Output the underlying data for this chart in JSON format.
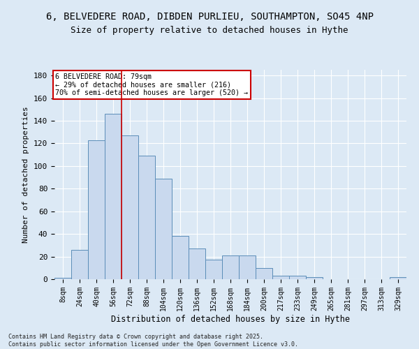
{
  "title_line1": "6, BELVEDERE ROAD, DIBDEN PURLIEU, SOUTHAMPTON, SO45 4NP",
  "title_line2": "Size of property relative to detached houses in Hythe",
  "xlabel": "Distribution of detached houses by size in Hythe",
  "ylabel": "Number of detached properties",
  "categories": [
    "8sqm",
    "24sqm",
    "40sqm",
    "56sqm",
    "72sqm",
    "88sqm",
    "104sqm",
    "120sqm",
    "136sqm",
    "152sqm",
    "168sqm",
    "184sqm",
    "200sqm",
    "217sqm",
    "233sqm",
    "249sqm",
    "265sqm",
    "281sqm",
    "297sqm",
    "313sqm",
    "329sqm"
  ],
  "values": [
    1,
    26,
    123,
    146,
    127,
    109,
    89,
    38,
    27,
    17,
    21,
    21,
    10,
    3,
    3,
    2,
    0,
    0,
    0,
    0,
    2
  ],
  "bar_color": "#c9d9ee",
  "bar_edge_color": "#5b8db8",
  "annotation_text": "6 BELVEDERE ROAD: 79sqm\n← 29% of detached houses are smaller (216)\n70% of semi-detached houses are larger (520) →",
  "annotation_box_color": "#ffffff",
  "annotation_box_edge": "#cc0000",
  "redline_bin": 4,
  "footer": "Contains HM Land Registry data © Crown copyright and database right 2025.\nContains public sector information licensed under the Open Government Licence v3.0.",
  "ylim": [
    0,
    185
  ],
  "background_color": "#dce9f5",
  "plot_bg_color": "#dce9f5",
  "grid_color": "#ffffff",
  "title_fontsize": 10,
  "subtitle_fontsize": 9,
  "tick_fontsize": 7,
  "ylabel_fontsize": 8,
  "xlabel_fontsize": 8.5
}
